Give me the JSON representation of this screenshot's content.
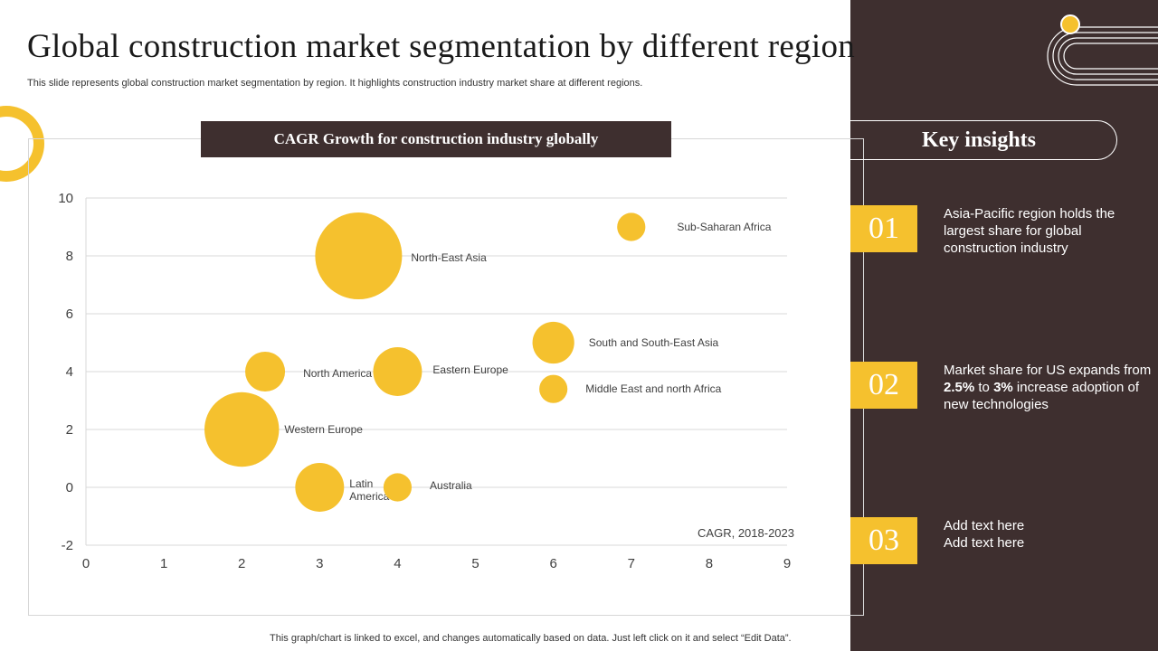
{
  "page": {
    "title": "Global construction market segmentation by different region",
    "subtitle": "This slide represents global construction market segmentation by region. It highlights construction industry market share at different regions.",
    "footnote": "This graph/chart is linked to excel, and changes automatically based on data. Just left click on it and select “Edit Data”."
  },
  "colors": {
    "accent": "#f5c12e",
    "panel": "#3e2f2f",
    "grid": "#d9d9d9",
    "text": "#404040"
  },
  "chart_data": {
    "type": "scatter",
    "subtype": "bubble",
    "title": "CAGR Growth for construction industry globally",
    "xlabel": "",
    "ylabel": "",
    "annotation": "CAGR, 2018-2023",
    "xlim": [
      0,
      9
    ],
    "ylim": [
      -2,
      10
    ],
    "xticks": [
      "0",
      "1",
      "2",
      "3",
      "4",
      "5",
      "6",
      "7",
      "8",
      "9"
    ],
    "yticks": [
      "-2",
      "0",
      "2",
      "4",
      "6",
      "8",
      "10"
    ],
    "grid": "horizontal",
    "series": [
      {
        "points": [
          {
            "label": "Sub-Saharan Africa",
            "x": 7,
            "y": 9,
            "size": 1
          },
          {
            "label": "North-East Asia",
            "x": 3.5,
            "y": 8,
            "size": 9.5
          },
          {
            "label": "South and South-East Asia",
            "x": 6,
            "y": 5,
            "size": 2.2
          },
          {
            "label": "North America",
            "x": 2.3,
            "y": 4,
            "size": 2
          },
          {
            "label": "Eastern Europe",
            "x": 4,
            "y": 4,
            "size": 3
          },
          {
            "label": "Middle East and north Africa",
            "x": 6,
            "y": 3.4,
            "size": 1
          },
          {
            "label": "Western Europe",
            "x": 2,
            "y": 2,
            "size": 7
          },
          {
            "label": "Latin America",
            "x": 3,
            "y": 0,
            "size": 3
          },
          {
            "label": "Australia",
            "x": 4,
            "y": 0,
            "size": 1
          }
        ]
      }
    ]
  },
  "insights": {
    "header": "Key insights",
    "items": [
      {
        "number": "01",
        "text": "Asia-Pacific region holds the largest share for global construction industry"
      },
      {
        "number": "02",
        "text_before": "Market share for US expands from ",
        "bold1": "2.5%",
        "text_mid": " to ",
        "bold2": "3%",
        "text_after": " increase adoption of new technologies"
      },
      {
        "number": "03",
        "line1": "Add text here",
        "line2": "Add text here"
      }
    ]
  }
}
